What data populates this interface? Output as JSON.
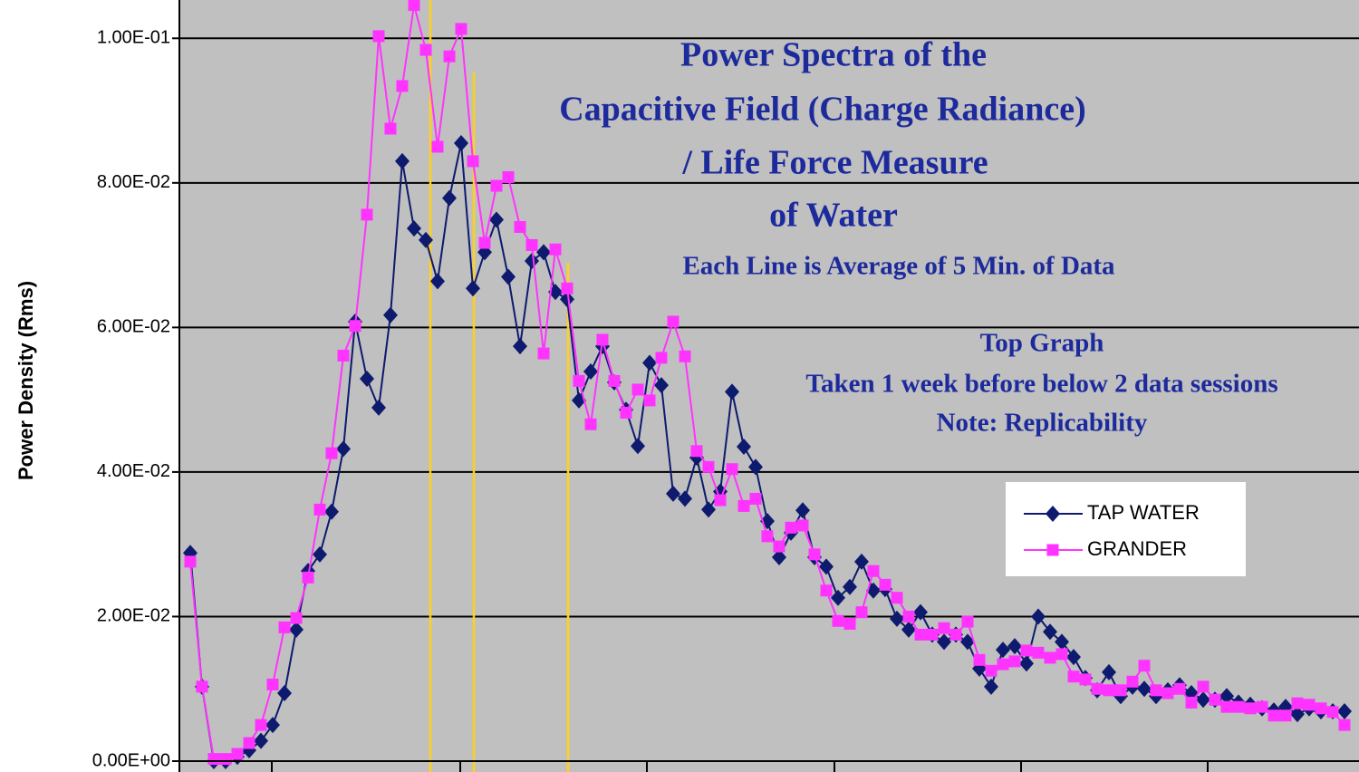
{
  "chart_data": {
    "type": "line",
    "title": [
      "Power Spectra of  the",
      "Capacitive Field (Charge Radiance)",
      "/ Life Force Measure",
      "of  Water"
    ],
    "subtitle": "Each Line is Average of 5 Min. of Data",
    "annotations": [
      "Top Graph",
      "Taken 1 week before below 2 data sessions",
      "Note: Replicability"
    ],
    "y_label": "Power Density (Rms)",
    "ylim": [
      0,
      0.1053
    ],
    "yticks": [
      {
        "value": 0,
        "label": "0.00E+00"
      },
      {
        "value": 0.02,
        "label": "2.00E-02"
      },
      {
        "value": 0.04,
        "label": "4.00E-02"
      },
      {
        "value": 0.06,
        "label": "6.00E-02"
      },
      {
        "value": 0.08,
        "label": "8.00E-02"
      },
      {
        "value": 0.1,
        "label": "1.00E-01"
      }
    ],
    "grid": true,
    "legend": "right",
    "series": [
      {
        "name": "TAP WATER",
        "color": "#0d1a6e",
        "marker": "diamond",
        "values": [
          0.0288,
          0.0103,
          0,
          0,
          0.0006,
          0.0015,
          0.0028,
          0.005,
          0.0094,
          0.0182,
          0.0263,
          0.0286,
          0.0345,
          0.0432,
          0.0608,
          0.0529,
          0.0489,
          0.0617,
          0.083,
          0.0737,
          0.0721,
          0.0664,
          0.0779,
          0.0855,
          0.0654,
          0.0704,
          0.0749,
          0.067,
          0.0574,
          0.0692,
          0.0704,
          0.0649,
          0.0639,
          0.0499,
          0.0539,
          0.0574,
          0.0524,
          0.0486,
          0.0436,
          0.0551,
          0.052,
          0.037,
          0.0363,
          0.042,
          0.0348,
          0.0373,
          0.0511,
          0.0435,
          0.0407,
          0.0332,
          0.0282,
          0.0316,
          0.0347,
          0.0282,
          0.0269,
          0.0226,
          0.0241,
          0.0276,
          0.0236,
          0.0238,
          0.0197,
          0.0182,
          0.0206,
          0.0175,
          0.0165,
          0.0175,
          0.0165,
          0.0128,
          0.0103,
          0.0154,
          0.0159,
          0.0135,
          0.02,
          0.0179,
          0.0165,
          0.0144,
          0.0115,
          0.0098,
          0.0123,
          0.009,
          0.0103,
          0.01,
          0.009,
          0.0098,
          0.0105,
          0.0094,
          0.0085,
          0.0085,
          0.009,
          0.0081,
          0.0078,
          0.0073,
          0.007,
          0.0075,
          0.0065,
          0.0073,
          0.0069,
          0.0069,
          0.0069
        ]
      },
      {
        "name": "GRANDER",
        "color": "#ff33ff",
        "marker": "square",
        "values": [
          0.0276,
          0.0103,
          0.0003,
          0.0003,
          0.001,
          0.0025,
          0.005,
          0.0106,
          0.0185,
          0.0198,
          0.0254,
          0.0348,
          0.0426,
          0.0561,
          0.0602,
          0.0756,
          0.1003,
          0.0875,
          0.0934,
          0.1046,
          0.0984,
          0.085,
          0.0975,
          0.1013,
          0.083,
          0.0717,
          0.0796,
          0.0808,
          0.0739,
          0.0714,
          0.0564,
          0.0708,
          0.0654,
          0.0526,
          0.0466,
          0.0583,
          0.0526,
          0.0482,
          0.0514,
          0.0499,
          0.0558,
          0.0608,
          0.056,
          0.0429,
          0.0407,
          0.0361,
          0.0404,
          0.0353,
          0.0363,
          0.0311,
          0.0297,
          0.0323,
          0.0326,
          0.0286,
          0.0236,
          0.0194,
          0.019,
          0.0206,
          0.0263,
          0.0244,
          0.0226,
          0.02,
          0.0175,
          0.0175,
          0.0184,
          0.0175,
          0.0193,
          0.014,
          0.0125,
          0.0134,
          0.0138,
          0.0153,
          0.015,
          0.0143,
          0.0148,
          0.0117,
          0.0113,
          0.01,
          0.0098,
          0.0098,
          0.011,
          0.0132,
          0.0098,
          0.0094,
          0.01,
          0.0081,
          0.0103,
          0.0085,
          0.0075,
          0.0075,
          0.0073,
          0.0075,
          0.0063,
          0.0063,
          0.008,
          0.0078,
          0.0073,
          0.0068,
          0.005
        ]
      }
    ]
  }
}
